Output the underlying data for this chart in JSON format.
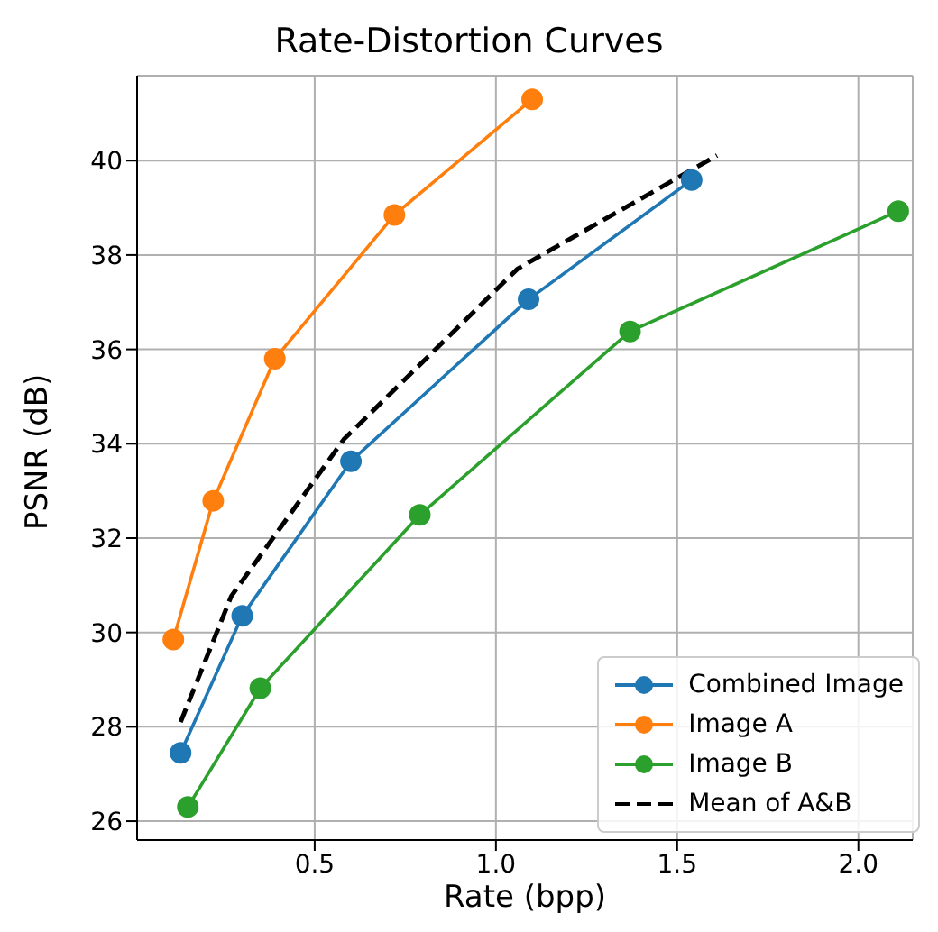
{
  "chart_data": {
    "type": "line",
    "title": "Rate-Distortion Curves",
    "xlabel": "Rate (bpp)",
    "ylabel": "PSNR (dB)",
    "xlim": [
      0.01,
      2.15
    ],
    "ylim": [
      25.6,
      41.8
    ],
    "xticks": [
      0.5,
      {
        "value": 1,
        "label": "1.0"
      },
      1.5,
      {
        "value": 2,
        "label": "2.0"
      }
    ],
    "yticks": [
      26,
      28,
      30,
      32,
      34,
      36,
      38,
      40
    ],
    "grid": true,
    "legend": "bottom right",
    "marker": "circle",
    "line_style": "solid",
    "series": [
      {
        "name": "Combined Image",
        "color": "#1f77b4",
        "x": [
          0.13,
          0.3,
          0.6,
          1.09,
          1.54
        ],
        "values": [
          27.45,
          30.35,
          33.63,
          37.06,
          39.59
        ]
      },
      {
        "name": "Image A",
        "color": "#ff7f0e",
        "x": [
          0.11,
          0.22,
          0.39,
          0.72,
          1.1
        ],
        "values": [
          29.85,
          32.79,
          35.8,
          38.85,
          41.3
        ]
      },
      {
        "name": "Image B",
        "color": "#2ca02c",
        "x": [
          0.15,
          0.35,
          0.79,
          1.37,
          2.11
        ],
        "values": [
          26.3,
          28.82,
          32.49,
          36.38,
          38.93
        ]
      },
      {
        "name": "Mean of A&B",
        "color": "#000000",
        "marker": "none",
        "line_style": "dashed",
        "x": [
          0.13,
          0.27,
          0.58,
          1.06,
          1.61
        ],
        "values": [
          28.1,
          30.77,
          34.09,
          37.71,
          40.11
        ]
      }
    ]
  }
}
